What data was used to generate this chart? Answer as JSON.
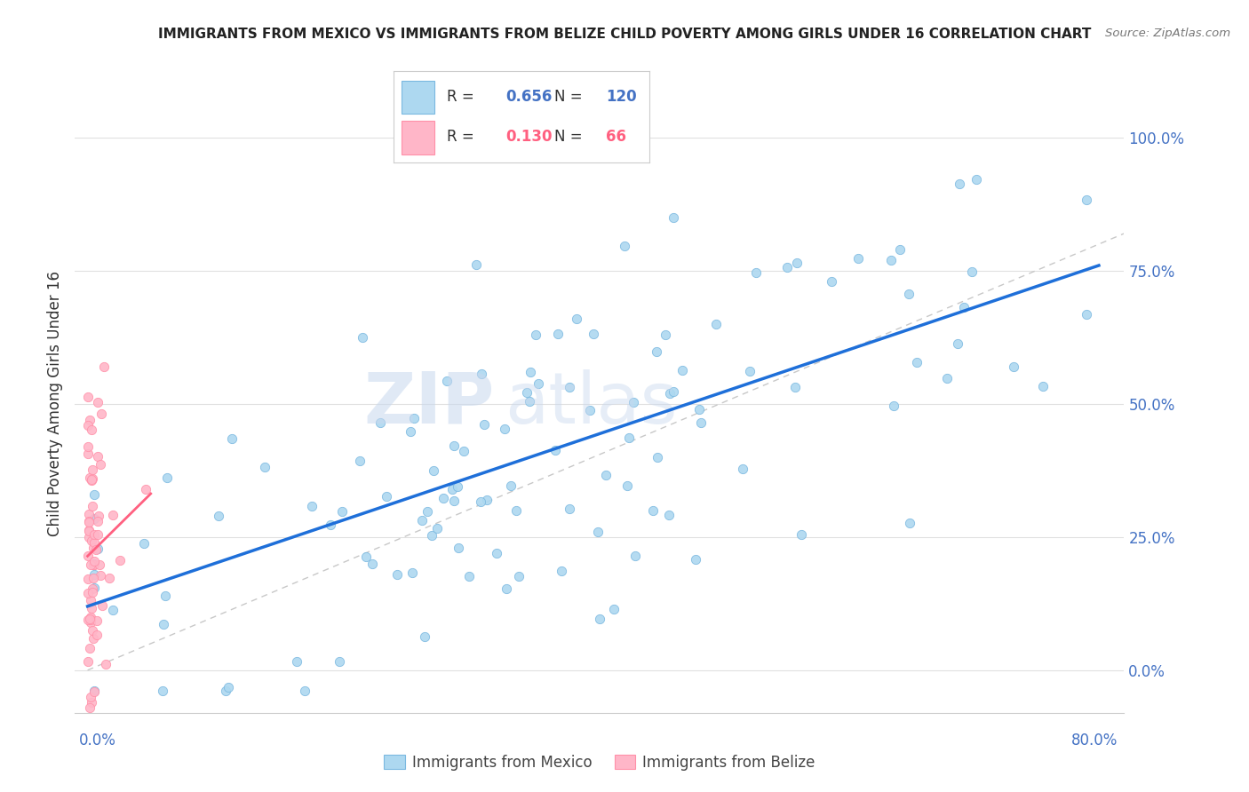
{
  "title": "IMMIGRANTS FROM MEXICO VS IMMIGRANTS FROM BELIZE CHILD POVERTY AMONG GIRLS UNDER 16 CORRELATION CHART",
  "source": "Source: ZipAtlas.com",
  "ylabel": "Child Poverty Among Girls Under 16",
  "ytick_labels": [
    "0.0%",
    "25.0%",
    "50.0%",
    "75.0%",
    "100.0%"
  ],
  "ytick_values": [
    0.0,
    0.25,
    0.5,
    0.75,
    1.0
  ],
  "xmin": 0.0,
  "xmax": 0.8,
  "ymin": -0.08,
  "ymax": 1.08,
  "mexico_R": 0.656,
  "mexico_N": 120,
  "belize_R": 0.13,
  "belize_N": 66,
  "color_mexico": "#ADD8F0",
  "color_belize": "#FFB6C8",
  "color_mexico_line": "#1E6FD9",
  "color_belize_line": "#FF6080",
  "color_diag": "#C8C8C8",
  "legend_border": "#CCCCCC",
  "bottom_legend_mexico": "Immigrants from Mexico",
  "bottom_legend_belize": "Immigrants from Belize",
  "title_color": "#222222",
  "source_color": "#777777",
  "axis_label_color": "#4472C4",
  "ylabel_color": "#333333",
  "grid_color": "#E0E0E0"
}
